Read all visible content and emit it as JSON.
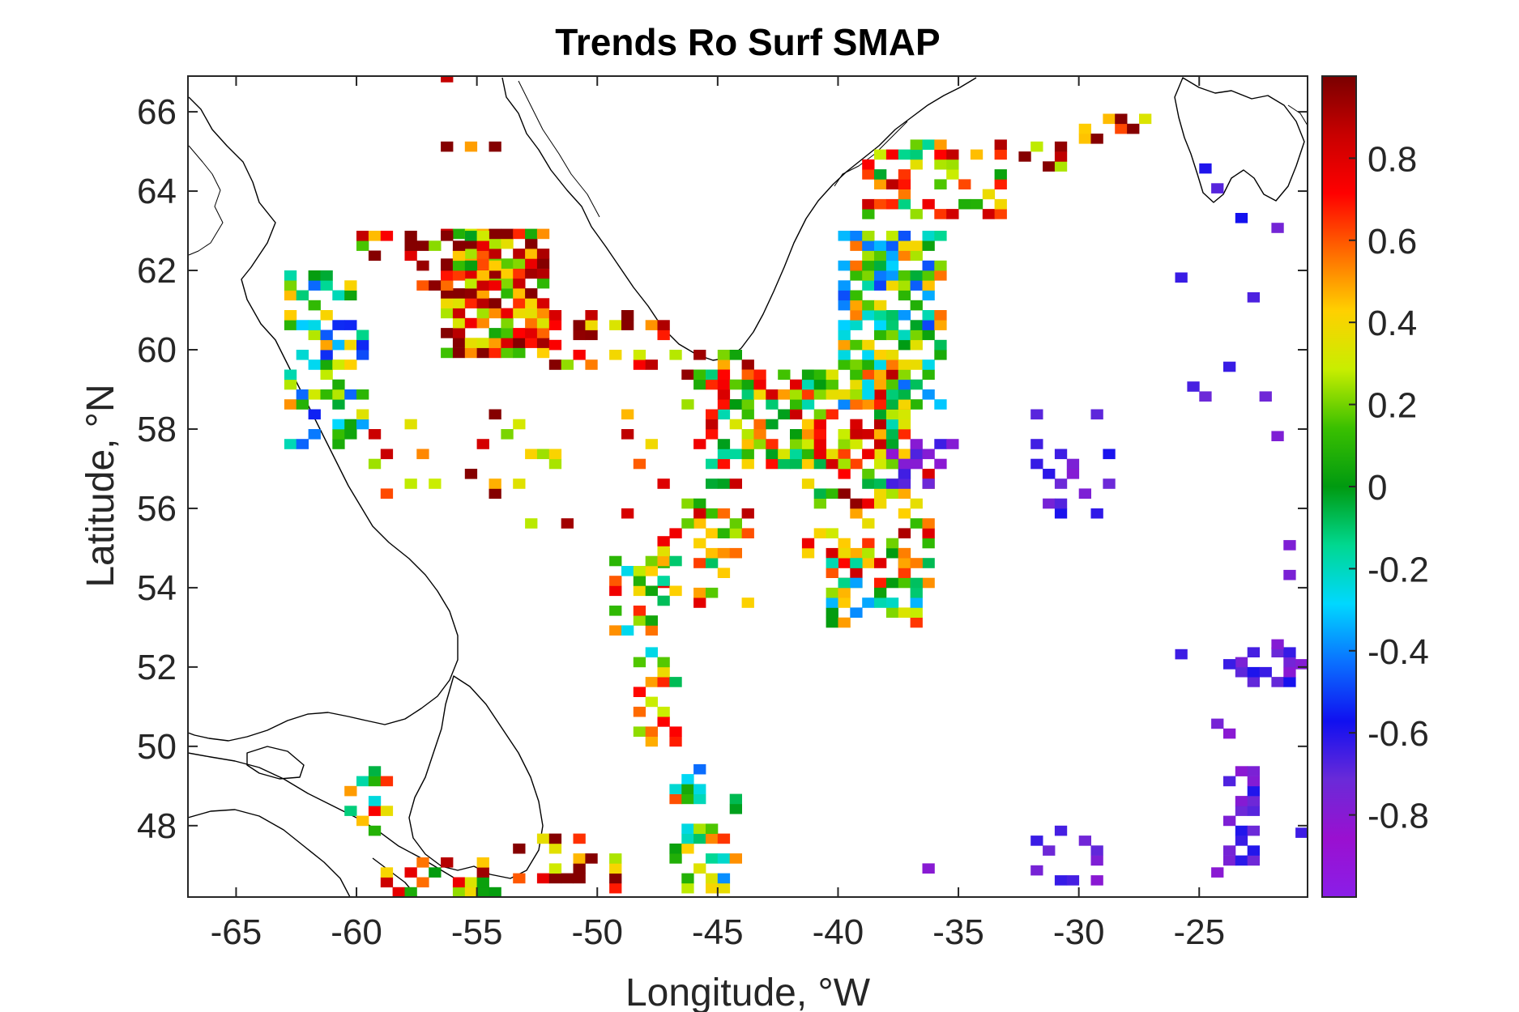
{
  "chart_data": {
    "type": "heatmap",
    "title": "Trends Ro Surf SMAP",
    "xlabel": "Longitude, °W",
    "ylabel": "Latitude, °N",
    "xlim": [
      -67,
      -20.5
    ],
    "ylim": [
      46.2,
      66.9
    ],
    "x_ticks": [
      -65,
      -60,
      -55,
      -50,
      -45,
      -40,
      -35,
      -30,
      -25
    ],
    "x_tick_labels": [
      "-65",
      "-60",
      "-55",
      "-50",
      "-45",
      "-40",
      "-35",
      "-30",
      "-25"
    ],
    "y_ticks": [
      48,
      50,
      52,
      54,
      56,
      58,
      60,
      62,
      64,
      66
    ],
    "y_tick_labels": [
      "48",
      "50",
      "52",
      "54",
      "56",
      "58",
      "60",
      "62",
      "64",
      "66"
    ],
    "colorbar": {
      "range": [
        -1,
        1
      ],
      "ticks": [
        -0.8,
        -0.6,
        -0.4,
        -0.2,
        0,
        0.2,
        0.4,
        0.6,
        0.8
      ],
      "tick_labels": [
        "-0.8",
        "-0.6",
        "-0.4",
        "-0.2",
        "0",
        "0.2",
        "0.4",
        "0.6",
        "0.8"
      ],
      "colormap_stops": [
        "#8a1ee8",
        "#9a10d0",
        "#6a2ad8",
        "#1010f0",
        "#0a70ff",
        "#00d8ff",
        "#00d890",
        "#009a10",
        "#3ac000",
        "#c8ee00",
        "#ffd000",
        "#ff6a00",
        "#ff0000",
        "#c80000",
        "#7a0000"
      ]
    },
    "grid": false,
    "coastline": "black outline of Greenland, Labrador, Newfoundland and Iceland",
    "cell_size_deg": [
      0.5,
      0.25
    ],
    "regions": [
      {
        "lon": [
          -56.5,
          -52
        ],
        "lat": [
          59.8,
          63
        ],
        "mean": 0.6,
        "density": 0.85
      },
      {
        "lon": [
          -52,
          -47
        ],
        "lat": [
          59.5,
          61
        ],
        "mean": 0.65,
        "density": 0.5
      },
      {
        "lon": [
          -57.5,
          -54
        ],
        "lat": [
          61.5,
          63
        ],
        "mean": 0.5,
        "density": 0.5
      },
      {
        "lon": [
          -63,
          -59.5
        ],
        "lat": [
          57.5,
          61.8
        ],
        "mean": 0.0,
        "density": 0.38
      },
      {
        "lon": [
          -60,
          -57.5
        ],
        "lat": [
          62,
          62.8
        ],
        "mean": 0.7,
        "density": 0.3
      },
      {
        "lon": [
          -47,
          -43
        ],
        "lat": [
          58.5,
          60
        ],
        "mean": 0.55,
        "density": 0.35
      },
      {
        "lon": [
          -45.5,
          -36.5
        ],
        "lat": [
          57,
          59.5
        ],
        "mean": 0.35,
        "density": 0.65
      },
      {
        "lon": [
          -40,
          -35.5
        ],
        "lat": [
          58.5,
          62.8
        ],
        "mean": 0.05,
        "density": 0.7
      },
      {
        "lon": [
          -41.5,
          -36
        ],
        "lat": [
          54,
          57.5
        ],
        "mean": 0.45,
        "density": 0.45
      },
      {
        "lon": [
          -40.5,
          -36.5
        ],
        "lat": [
          53,
          55
        ],
        "mean": 0.1,
        "density": 0.55
      },
      {
        "lon": [
          -47.5,
          -43.5
        ],
        "lat": [
          53.5,
          57
        ],
        "mean": 0.45,
        "density": 0.3
      },
      {
        "lon": [
          -49.5,
          -46.5
        ],
        "lat": [
          52.8,
          55.5
        ],
        "mean": 0.25,
        "density": 0.5
      },
      {
        "lon": [
          -48.5,
          -46.5
        ],
        "lat": [
          50,
          52.5
        ],
        "mean": 0.25,
        "density": 0.45
      },
      {
        "lon": [
          -47,
          -44
        ],
        "lat": [
          46.3,
          49.5
        ],
        "mean": 0.1,
        "density": 0.4
      },
      {
        "lon": [
          -39,
          -33
        ],
        "lat": [
          63.3,
          65.2
        ],
        "mean": 0.35,
        "density": 0.5
      },
      {
        "lon": [
          -33,
          -30.5
        ],
        "lat": [
          64.5,
          65.5
        ],
        "mean": 0.75,
        "density": 0.5
      },
      {
        "lon": [
          -30,
          -26
        ],
        "lat": [
          65.2,
          65.8
        ],
        "mean": 0.85,
        "density": 0.45
      },
      {
        "lon": [
          -53.5,
          -49
        ],
        "lat": [
          46.3,
          47.8
        ],
        "mean": 0.7,
        "density": 0.4
      },
      {
        "lon": [
          -59,
          -54
        ],
        "lat": [
          46.2,
          47
        ],
        "mean": 0.4,
        "density": 0.35
      },
      {
        "lon": [
          -60.5,
          -58.5
        ],
        "lat": [
          47.5,
          49.5
        ],
        "mean": 0.3,
        "density": 0.35
      },
      {
        "lon": [
          -60,
          -45
        ],
        "lat": [
          55.5,
          58.5
        ],
        "mean": 0.7,
        "density": 0.08
      },
      {
        "lon": [
          -56.5,
          -54
        ],
        "lat": [
          65,
          67
        ],
        "mean": 0.5,
        "density": 0.15
      },
      {
        "lon": [
          -38,
          -35
        ],
        "lat": [
          56.5,
          58
        ],
        "mean": -0.72,
        "density": 0.35
      },
      {
        "lon": [
          -32,
          -28.5
        ],
        "lat": [
          55.5,
          58.5
        ],
        "mean": -0.7,
        "density": 0.22
      },
      {
        "lon": [
          -24,
          -22.5
        ],
        "lat": [
          47,
          49.5
        ],
        "mean": -0.7,
        "density": 0.6
      },
      {
        "lon": [
          -32,
          -29
        ],
        "lat": [
          46.5,
          48
        ],
        "mean": -0.7,
        "density": 0.3
      },
      {
        "lon": [
          -38,
          -36
        ],
        "lat": [
          46.8,
          47.8
        ],
        "mean": -0.7,
        "density": 0.3
      },
      {
        "lon": [
          -23.5,
          -21
        ],
        "lat": [
          51.5,
          52.5
        ],
        "mean": -0.7,
        "density": 0.4
      },
      {
        "lon": [
          -26,
          -20.6
        ],
        "lat": [
          46.2,
          66
        ],
        "mean": -0.7,
        "density": 0.025
      }
    ]
  }
}
